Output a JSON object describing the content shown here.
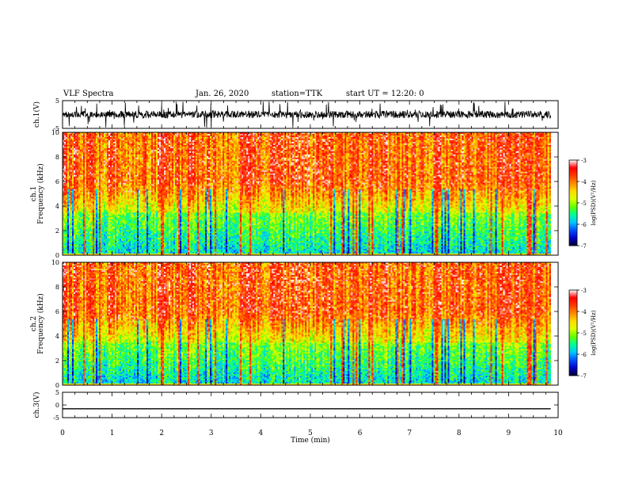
{
  "header": {
    "title": "VLF Spectra",
    "date": "Jan. 26, 2020",
    "station": "station=TTK",
    "start": "start UT =  12:20: 0"
  },
  "chart_data": [
    {
      "type": "line",
      "panel": "ch1-waveform",
      "ylabel": "ch.1(V)",
      "ylim": [
        -5,
        5
      ],
      "yticks": [
        "5",
        "-5"
      ],
      "xlim": [
        0,
        10
      ],
      "description_of_series": "noisy waveform fluctuating mostly between about -2 and 2 V with frequent spikes toward ±5 V"
    },
    {
      "type": "heatmap",
      "panel": "ch1-spectrogram",
      "ylabel": "ch.1\nFrequency (kHz)",
      "ylim": [
        0,
        10
      ],
      "yticks": [
        "0",
        "2",
        "4",
        "6",
        "8",
        "10"
      ],
      "xlim": [
        0,
        10
      ],
      "colorbar": {
        "label": "log(PSD)(V²/Hz)",
        "range": [
          -7,
          -3
        ],
        "ticks": [
          "-3",
          "-4",
          "-5",
          "-6",
          "-7"
        ]
      },
      "data_extent_min": 9.85
    },
    {
      "type": "heatmap",
      "panel": "ch2-spectrogram",
      "ylabel": "ch.2\nFrequency (kHz)",
      "ylim": [
        0,
        10
      ],
      "yticks": [
        "0",
        "2",
        "4",
        "6",
        "8",
        "10"
      ],
      "xlim": [
        0,
        10
      ],
      "colorbar": {
        "label": "log(PSD)(V²/Hz)",
        "range": [
          -7,
          -3
        ],
        "ticks": [
          "-3",
          "-4",
          "-5",
          "-6",
          "-7"
        ]
      },
      "data_extent_min": 9.85
    },
    {
      "type": "line",
      "panel": "ch3-waveform",
      "ylabel": "ch.3(V)",
      "ylim": [
        -5,
        5
      ],
      "yticks": [
        "5",
        "0",
        "-5"
      ],
      "xlim": [
        0,
        10
      ],
      "flat_value": -1.5
    }
  ],
  "xaxis": {
    "label": "Time (min)",
    "ticks": [
      "0",
      "1",
      "2",
      "3",
      "4",
      "5",
      "6",
      "7",
      "8",
      "9",
      "10"
    ]
  },
  "colors": {
    "ink": "#000000",
    "colormap": [
      "#000033",
      "#0000c8",
      "#0050ff",
      "#00c8ff",
      "#00ff96",
      "#64ff00",
      "#dcff00",
      "#ffdc00",
      "#ff8c00",
      "#ff3c00",
      "#ff0000",
      "#ffffff"
    ]
  }
}
